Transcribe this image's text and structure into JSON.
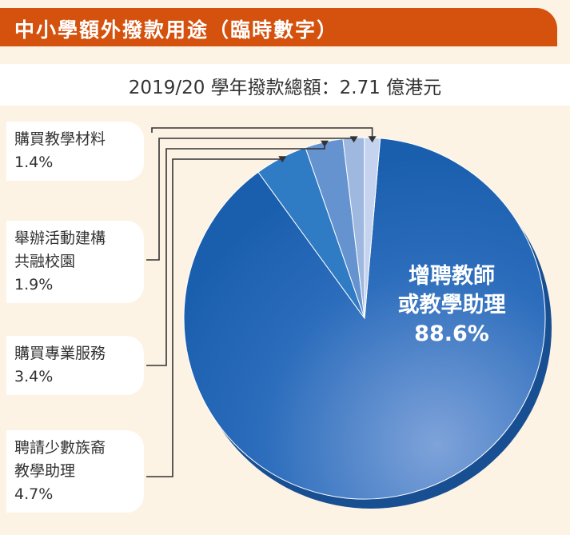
{
  "header": {
    "title": "中小學額外撥款用途（臨時數字）",
    "subtitle": "2019/20 學年撥款總額：2.71 億港元"
  },
  "colors": {
    "title_bg": "#d4520e",
    "background": "#fdf3e4",
    "main_slice": "#1a5fae",
    "slice_2": "#2f7bc4",
    "slice_3": "#6593cf",
    "slice_4": "#9fb8e0",
    "slice_5": "#c5d3ee"
  },
  "chart_data": {
    "type": "pie",
    "title": "中小學額外撥款用途（臨時數字）",
    "subtitle": "2019/20 學年撥款總額：2.71 億港元",
    "slices": [
      {
        "label": "增聘教師或教學助理",
        "lines": [
          "增聘教師",
          "或教學助理"
        ],
        "value": 88.6,
        "pct": "88.6%"
      },
      {
        "label": "聘請少數族裔教學助理",
        "lines": [
          "聘請少數族裔",
          "教學助理"
        ],
        "value": 4.7,
        "pct": "4.7%"
      },
      {
        "label": "購買專業服務",
        "lines": [
          "購買專業服務"
        ],
        "value": 3.4,
        "pct": "3.4%"
      },
      {
        "label": "舉辦活動建構共融校園",
        "lines": [
          "舉辦活動建構",
          "共融校園"
        ],
        "value": 1.9,
        "pct": "1.9%"
      },
      {
        "label": "購買教學材料",
        "lines": [
          "購買教學材料"
        ],
        "value": 1.4,
        "pct": "1.4%"
      }
    ]
  }
}
